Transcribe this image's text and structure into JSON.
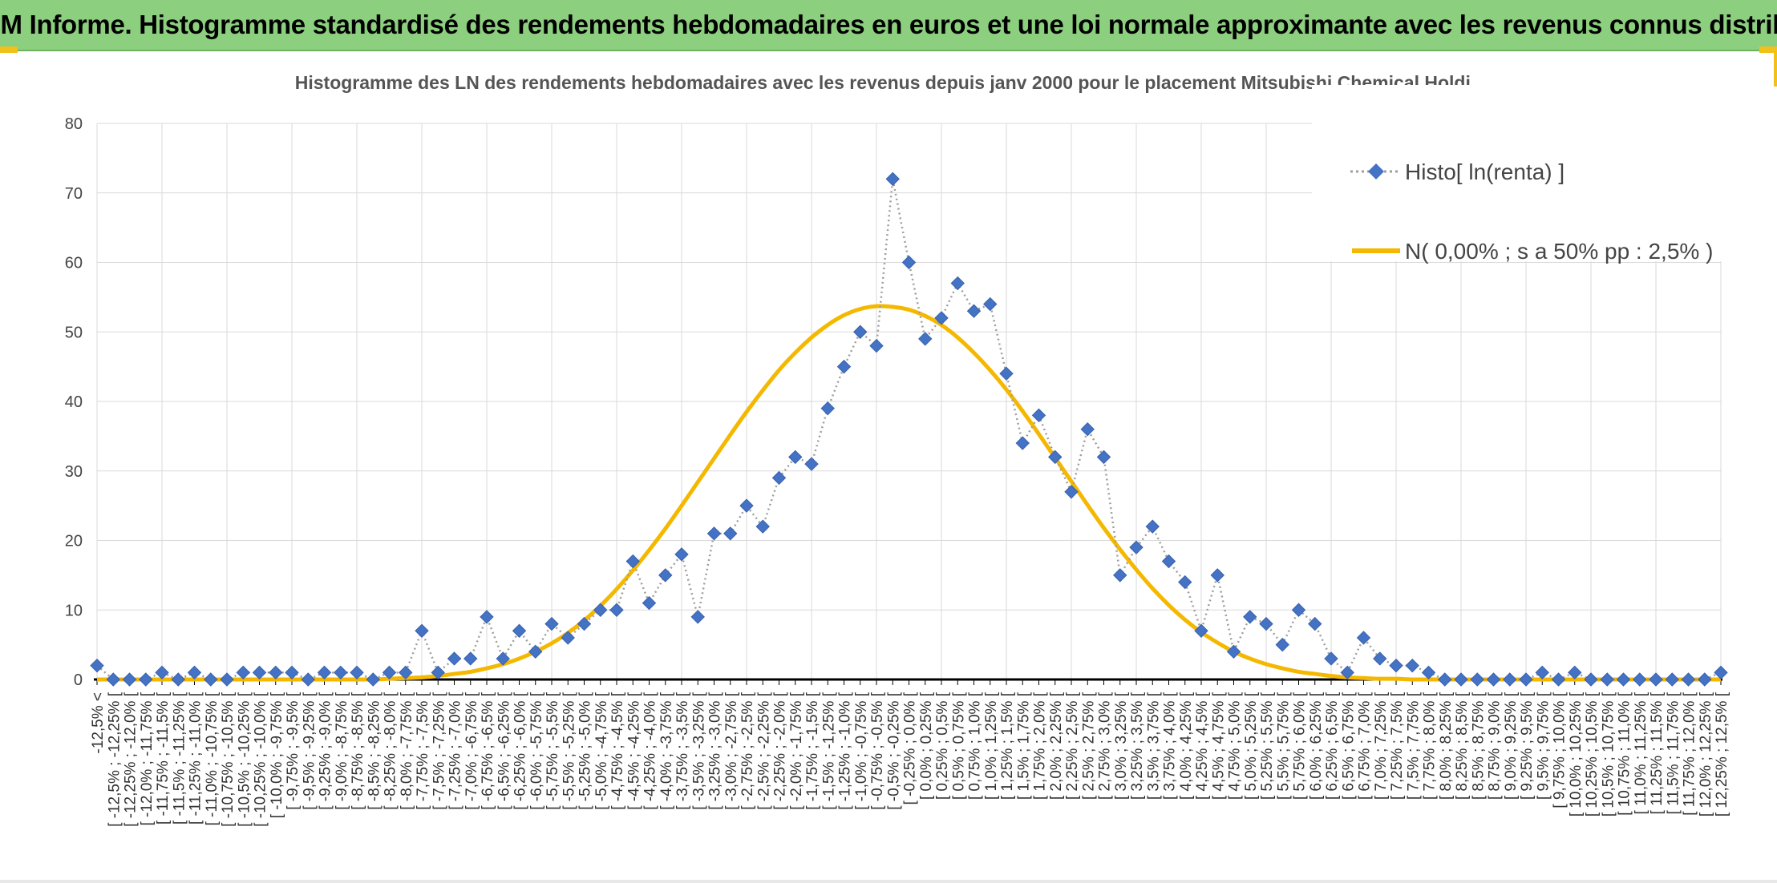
{
  "page": {
    "title": "ADAM Informe. Histogramme standardisé des rendements hebdomadaires en euros et une loi normale approximante avec les revenus connus distribués"
  },
  "colors": {
    "header_bg": "#8ccf7e",
    "accent": "#f2c01a",
    "series_histo": "#4472c4",
    "series_normal": "#f5b800",
    "grid": "#d9d9d9"
  },
  "chart_data": {
    "type": "line",
    "title": "Histogramme des LN des rendements hebdomadaires avec les revenus depuis janv 2000 pour le placement Mitsubishi Chemical Holdi.",
    "xlabel": "",
    "ylabel": "",
    "ylim": [
      0,
      80
    ],
    "yticks": [
      "0",
      "10",
      "20",
      "30",
      "40",
      "50",
      "60",
      "70",
      "80"
    ],
    "grid": true,
    "legend_position": "top-right",
    "categories": [
      "-12,5% <",
      "[ -12,5% ; -12,25% [",
      "[ -12,25% ; -12,0% [",
      "[ -12,0% ; -11,75% [",
      "[ -11,75% ; -11,5% [",
      "[ -11,5% ; -11,25% [",
      "[ -11,25% ; -11,0% [",
      "[ -11,0% ; -10,75% [",
      "[ -10,75% ; -10,5% [",
      "[ -10,5% ; -10,25% [",
      "[ -10,25% ; -10,0% [",
      "[ -10,0% ; -9,75% [",
      "[ -9,75% ; -9,5% [",
      "[ -9,5% ; -9,25% [",
      "[ -9,25% ; -9,0% [",
      "[ -9,0% ; -8,75% [",
      "[ -8,75% ; -8,5% [",
      "[ -8,5% ; -8,25% [",
      "[ -8,25% ; -8,0% [",
      "[ -8,0% ; -7,75% [",
      "[ -7,75% ; -7,5% [",
      "[ -7,5% ; -7,25% [",
      "[ -7,25% ; -7,0% [",
      "[ -7,0% ; -6,75% [",
      "[ -6,75% ; -6,5% [",
      "[ -6,5% ; -6,25% [",
      "[ -6,25% ; -6,0% [",
      "[ -6,0% ; -5,75% [",
      "[ -5,75% ; -5,5% [",
      "[ -5,5% ; -5,25% [",
      "[ -5,25% ; -5,0% [",
      "[ -5,0% ; -4,75% [",
      "[ -4,75% ; -4,5% [",
      "[ -4,5% ; -4,25% [",
      "[ -4,25% ; -4,0% [",
      "[ -4,0% ; -3,75% [",
      "[ -3,75% ; -3,5% [",
      "[ -3,5% ; -3,25% [",
      "[ -3,25% ; -3,0% [",
      "[ -3,0% ; -2,75% [",
      "[ -2,75% ; -2,5% [",
      "[ -2,5% ; -2,25% [",
      "[ -2,25% ; -2,0% [",
      "[ -2,0% ; -1,75% [",
      "[ -1,75% ; -1,5% [",
      "[ -1,5% ; -1,25% [",
      "[ -1,25% ; -1,0% [",
      "[ -1,0% ; -0,75% [",
      "[ -0,75% ; -0,5% [",
      "[ -0,5% ; -0,25% [",
      "[ -0,25% ; 0,0% [",
      "[ 0,0% ; 0,25% [",
      "[ 0,25% ; 0,5% [",
      "[ 0,5% ; 0,75% [",
      "[ 0,75% ; 1,0% [",
      "[ 1,0% ; 1,25% [",
      "[ 1,25% ; 1,5% [",
      "[ 1,5% ; 1,75% [",
      "[ 1,75% ; 2,0% [",
      "[ 2,0% ; 2,25% [",
      "[ 2,25% ; 2,5% [",
      "[ 2,5% ; 2,75% [",
      "[ 2,75% ; 3,0% [",
      "[ 3,0% ; 3,25% [",
      "[ 3,25% ; 3,5% [",
      "[ 3,5% ; 3,75% [",
      "[ 3,75% ; 4,0% [",
      "[ 4,0% ; 4,25% [",
      "[ 4,25% ; 4,5% [",
      "[ 4,5% ; 4,75% [",
      "[ 4,75% ; 5,0% [",
      "[ 5,0% ; 5,25% [",
      "[ 5,25% ; 5,5% [",
      "[ 5,5% ; 5,75% [",
      "[ 5,75% ; 6,0% [",
      "[ 6,0% ; 6,25% [",
      "[ 6,25% ; 6,5% [",
      "[ 6,5% ; 6,75% [",
      "[ 6,75% ; 7,0% [",
      "[ 7,0% ; 7,25% [",
      "[ 7,25% ; 7,5% [",
      "[ 7,5% ; 7,75% [",
      "[ 7,75% ; 8,0% [",
      "[ 8,0% ; 8,25% [",
      "[ 8,25% ; 8,5% [",
      "[ 8,5% ; 8,75% [",
      "[ 8,75% ; 9,0% [",
      "[ 9,0% ; 9,25% [",
      "[ 9,25% ; 9,5% [",
      "[ 9,5% ; 9,75% [",
      "[ 9,75% ; 10,0% [",
      "[ 10,0% ; 10,25% [",
      "[ 10,25% ; 10,5% [",
      "[ 10,5% ; 10,75% [",
      "[ 10,75% ; 11,0% [",
      "[ 11,0% ; 11,25% [",
      "[ 11,25% ; 11,5% [",
      "[ 11,5% ; 11,75% [",
      "[ 11,75% ; 12,0% [",
      "[ 12,0% ; 12,25% [",
      "[ 12,25% ; 12,5% ["
    ],
    "series": [
      {
        "name": "Histo[ ln(renta) ]",
        "style": "dotted-line-diamond-markers",
        "color": "#4472c4",
        "values": [
          2,
          0,
          0,
          0,
          1,
          0,
          1,
          0,
          0,
          1,
          1,
          1,
          1,
          0,
          1,
          1,
          1,
          0,
          1,
          1,
          7,
          1,
          3,
          3,
          9,
          3,
          7,
          4,
          8,
          6,
          8,
          10,
          10,
          17,
          11,
          15,
          18,
          9,
          21,
          21,
          25,
          22,
          29,
          32,
          31,
          39,
          45,
          50,
          48,
          72,
          60,
          49,
          52,
          57,
          53,
          54,
          44,
          34,
          38,
          32,
          27,
          36,
          32,
          15,
          19,
          22,
          17,
          14,
          7,
          15,
          4,
          9,
          8,
          5,
          10,
          8,
          3,
          1,
          6,
          3,
          2,
          2,
          1,
          0,
          0,
          0,
          0,
          0,
          0,
          1,
          0,
          1,
          0,
          0,
          0,
          0,
          0,
          0,
          0,
          0,
          1
        ]
      },
      {
        "name": "N( 0,00% ; s a 50% pp : 2,5% )",
        "style": "solid-line",
        "color": "#f5b800",
        "values": [
          0,
          0,
          0,
          0,
          0,
          0,
          0,
          0,
          0,
          0,
          0,
          0,
          0,
          0,
          0,
          0,
          0,
          0,
          0.1,
          0.2,
          0.3,
          0.5,
          0.8,
          1.1,
          1.6,
          2.2,
          3.0,
          4.0,
          5.2,
          6.7,
          8.5,
          10.6,
          13.0,
          15.7,
          18.6,
          21.7,
          25.0,
          28.4,
          31.8,
          35.2,
          38.5,
          41.6,
          44.5,
          47.0,
          49.2,
          51.0,
          52.4,
          53.3,
          53.7,
          53.6,
          53.2,
          52.3,
          51.0,
          49.2,
          47.0,
          44.5,
          41.7,
          38.6,
          35.3,
          31.9,
          28.5,
          25.1,
          21.8,
          18.7,
          15.8,
          13.1,
          10.7,
          8.6,
          6.8,
          5.3,
          4.0,
          3.0,
          2.2,
          1.6,
          1.1,
          0.8,
          0.5,
          0.3,
          0.2,
          0.1,
          0.1,
          0,
          0,
          0,
          0,
          0,
          0,
          0,
          0,
          0,
          0,
          0,
          0,
          0,
          0,
          0,
          0,
          0,
          0,
          0,
          0
        ]
      }
    ]
  }
}
